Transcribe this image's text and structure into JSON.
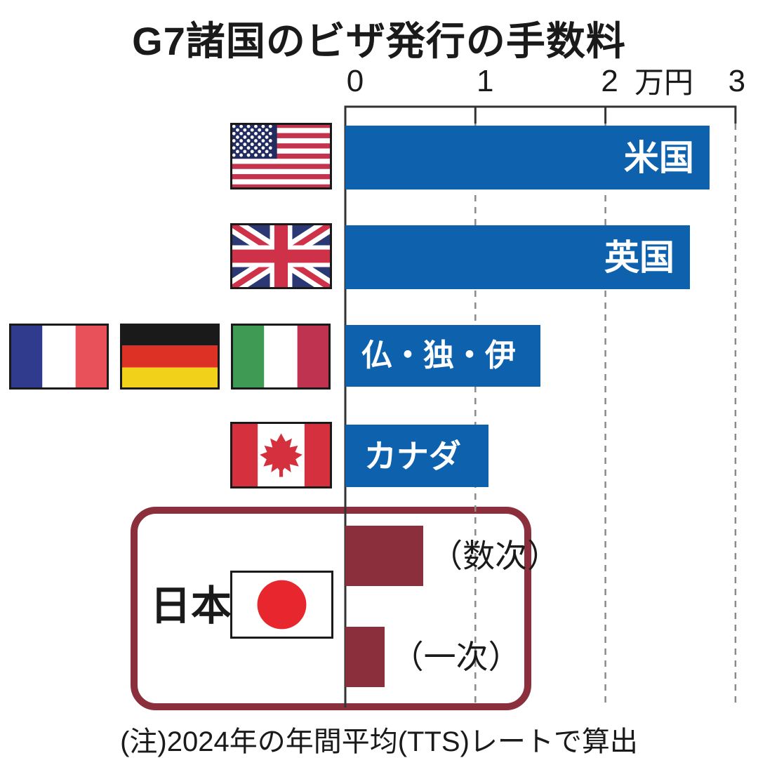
{
  "chart_data": {
    "type": "bar",
    "orientation": "horizontal",
    "title": "G7諸国のビザ発行の手数料",
    "value_unit": "万円",
    "xlim": [
      0,
      3
    ],
    "x_ticks": [
      "0",
      "1",
      "2",
      "3"
    ],
    "grid": "dashed-vertical-gridlines",
    "legend": "none",
    "categories": [
      "米国",
      "英国",
      "仏・独・伊",
      "カナダ",
      "日本（数次）",
      "日本（一次）"
    ],
    "values": [
      2.8,
      2.65,
      1.5,
      1.1,
      0.6,
      0.3
    ],
    "rows": [
      {
        "label": "米国",
        "flags": [
          "usa"
        ],
        "value": 2.8
      },
      {
        "label": "英国",
        "flags": [
          "uk"
        ],
        "value": 2.65
      },
      {
        "label": "仏・独・伊",
        "flags": [
          "france",
          "germany",
          "italy"
        ],
        "value": 1.5
      },
      {
        "label": "カナダ",
        "flags": [
          "canada"
        ],
        "value": 1.1
      }
    ],
    "japan_group": {
      "label": "日本",
      "flag": "japan",
      "bars": [
        {
          "label": "（数次）",
          "value": 0.6
        },
        {
          "label": "（一次）",
          "value": 0.3
        }
      ]
    },
    "note": "(注)2024年の年間平均(TTS)レートで算出"
  },
  "colors": {
    "bar_blue": "#0d61ad",
    "japan_red": "#8b2f3c",
    "axis": "#333333",
    "grid_dash": "#8a8a8a",
    "bar_label_text": "#ffffff",
    "flag_border": "#1a1a1a"
  }
}
